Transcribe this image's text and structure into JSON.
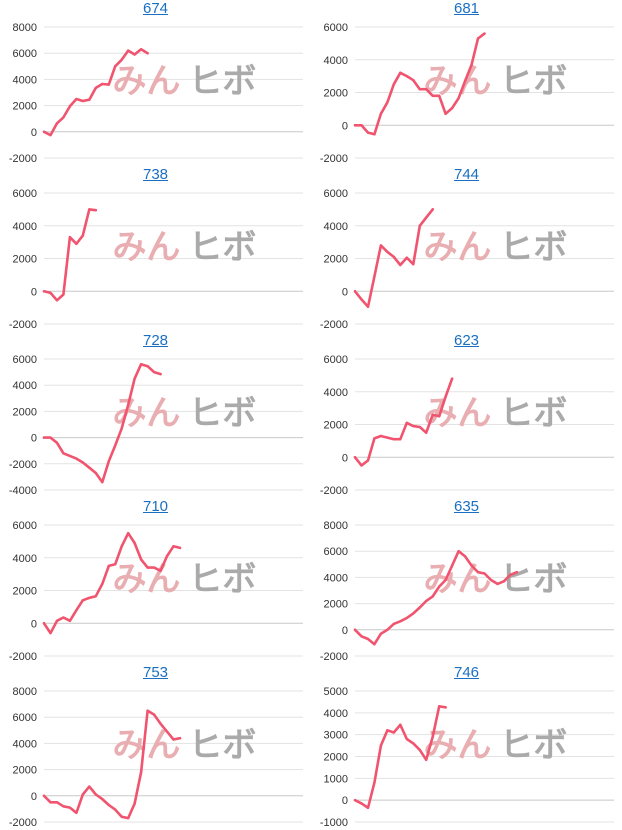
{
  "colors": {
    "line": "#f0546e",
    "grid": "#e3e3e3",
    "zero": "#c8c8c8",
    "title": "#1a6fc2"
  },
  "watermark": {
    "left": "みん",
    "right": "ヒボ"
  },
  "chart_data": [
    {
      "type": "line",
      "title": "674",
      "yticks": [
        -2000,
        0,
        2000,
        4000,
        6000,
        8000
      ],
      "ylim": [
        -2000,
        8000
      ],
      "xlim": [
        0,
        40
      ],
      "y": [
        0,
        -250,
        650,
        1100,
        1950,
        2500,
        2350,
        2450,
        3350,
        3650,
        3600,
        5000,
        5500,
        6200,
        5900,
        6300,
        6000
      ]
    },
    {
      "type": "line",
      "title": "681",
      "yticks": [
        -2000,
        0,
        2000,
        4000,
        6000
      ],
      "ylim": [
        -2000,
        6000
      ],
      "xlim": [
        0,
        40
      ],
      "y": [
        0,
        0,
        -450,
        -550,
        700,
        1400,
        2500,
        3200,
        3000,
        2750,
        2200,
        2200,
        1800,
        1800,
        700,
        1050,
        1650,
        2700,
        3700,
        5300,
        5600
      ]
    },
    {
      "type": "line",
      "title": "738",
      "yticks": [
        -2000,
        0,
        2000,
        4000,
        6000
      ],
      "ylim": [
        -2000,
        6000
      ],
      "xlim": [
        0,
        40
      ],
      "y": [
        0,
        -100,
        -550,
        -200,
        3300,
        2900,
        3400,
        5000,
        4950
      ]
    },
    {
      "type": "line",
      "title": "744",
      "yticks": [
        -2000,
        0,
        2000,
        4000,
        6000
      ],
      "ylim": [
        -2000,
        6000
      ],
      "xlim": [
        0,
        40
      ],
      "y": [
        0,
        -500,
        -950,
        900,
        2800,
        2400,
        2100,
        1600,
        2050,
        1650,
        4000,
        4500,
        5000
      ]
    },
    {
      "type": "line",
      "title": "728",
      "yticks": [
        -4000,
        -2000,
        0,
        2000,
        4000,
        6000
      ],
      "ylim": [
        -4000,
        6000
      ],
      "xlim": [
        0,
        40
      ],
      "y": [
        0,
        0,
        -400,
        -1200,
        -1400,
        -1600,
        -1900,
        -2300,
        -2700,
        -3400,
        -1800,
        -600,
        700,
        2500,
        4500,
        5600,
        5450,
        5000,
        4850
      ]
    },
    {
      "type": "line",
      "title": "623",
      "yticks": [
        -2000,
        0,
        2000,
        4000,
        6000
      ],
      "ylim": [
        -2000,
        6000
      ],
      "xlim": [
        0,
        40
      ],
      "y": [
        0,
        -500,
        -200,
        1150,
        1300,
        1200,
        1100,
        1100,
        2100,
        1900,
        1850,
        1500,
        2600,
        2500,
        3700,
        4800
      ]
    },
    {
      "type": "line",
      "title": "710",
      "yticks": [
        -2000,
        0,
        2000,
        4000,
        6000
      ],
      "ylim": [
        -2000,
        6000
      ],
      "xlim": [
        0,
        40
      ],
      "y": [
        0,
        -600,
        150,
        350,
        150,
        800,
        1400,
        1550,
        1650,
        2400,
        3500,
        3600,
        4700,
        5500,
        4900,
        3900,
        3400,
        3400,
        3200,
        4100,
        4700,
        4600
      ]
    },
    {
      "type": "line",
      "title": "635",
      "yticks": [
        -2000,
        0,
        2000,
        4000,
        6000,
        8000
      ],
      "ylim": [
        -2000,
        8000
      ],
      "xlim": [
        0,
        40
      ],
      "y": [
        0,
        -500,
        -700,
        -1100,
        -300,
        0,
        450,
        650,
        900,
        1250,
        1700,
        2200,
        2550,
        3300,
        3800,
        4900,
        6000,
        5600,
        4900,
        4400,
        4300,
        3800,
        3500,
        3700,
        4200,
        4400
      ]
    },
    {
      "type": "line",
      "title": "753",
      "yticks": [
        -2000,
        0,
        2000,
        4000,
        6000,
        8000
      ],
      "ylim": [
        -2000,
        8000
      ],
      "xlim": [
        0,
        40
      ],
      "y": [
        0,
        -500,
        -500,
        -800,
        -900,
        -1300,
        100,
        700,
        100,
        -250,
        -700,
        -1050,
        -1600,
        -1700,
        -600,
        1800,
        6500,
        6200,
        5500,
        4900,
        4300,
        4400
      ]
    },
    {
      "type": "line",
      "title": "746",
      "yticks": [
        -1000,
        0,
        1000,
        2000,
        3000,
        4000,
        5000
      ],
      "ylim": [
        -1000,
        5000
      ],
      "xlim": [
        0,
        40
      ],
      "y": [
        0,
        -150,
        -350,
        800,
        2500,
        3200,
        3100,
        3450,
        2800,
        2600,
        2300,
        1850,
        2900,
        4300,
        4250
      ]
    }
  ]
}
